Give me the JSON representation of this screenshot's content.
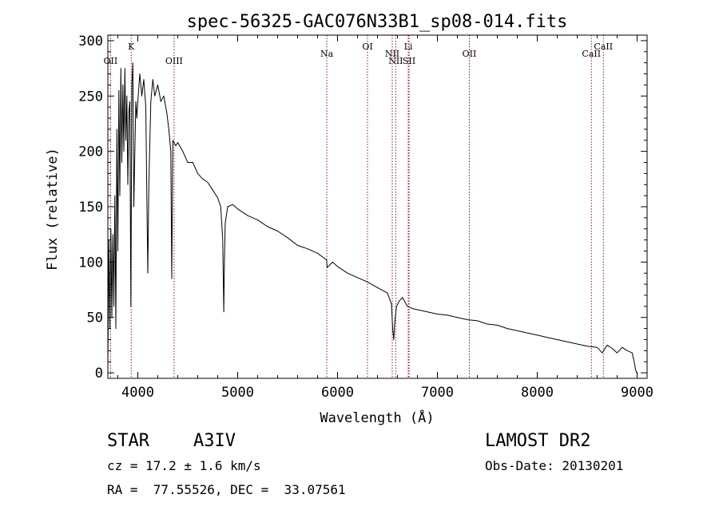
{
  "chart_data": {
    "type": "line",
    "title": "spec-56325-GAC076N33B1_sp08-014.fits",
    "xlabel": "Wavelength (Å)",
    "ylabel": "Flux (relative)",
    "xlim": [
      3700,
      9100
    ],
    "ylim": [
      -5,
      305
    ],
    "xticks": [
      4000,
      5000,
      6000,
      7000,
      8000,
      9000
    ],
    "yticks": [
      0,
      50,
      100,
      150,
      200,
      250,
      300
    ],
    "grid": false,
    "line_color": "#000000",
    "marker_color": "#8b1a1a",
    "spectrum": [
      [
        3700,
        5
      ],
      [
        3710,
        120
      ],
      [
        3720,
        40
      ],
      [
        3730,
        130
      ],
      [
        3740,
        50
      ],
      [
        3750,
        125
      ],
      [
        3760,
        60
      ],
      [
        3770,
        160
      ],
      [
        3780,
        40
      ],
      [
        3790,
        220
      ],
      [
        3800,
        110
      ],
      [
        3810,
        255
      ],
      [
        3820,
        160
      ],
      [
        3830,
        275
      ],
      [
        3840,
        190
      ],
      [
        3850,
        260
      ],
      [
        3860,
        200
      ],
      [
        3870,
        275
      ],
      [
        3880,
        210
      ],
      [
        3890,
        250
      ],
      [
        3900,
        170
      ],
      [
        3910,
        235
      ],
      [
        3920,
        245
      ],
      [
        3930,
        60
      ],
      [
        3940,
        260
      ],
      [
        3950,
        280
      ],
      [
        3960,
        150
      ],
      [
        3970,
        200
      ],
      [
        3980,
        245
      ],
      [
        3990,
        230
      ],
      [
        4000,
        245
      ],
      [
        4020,
        270
      ],
      [
        4040,
        250
      ],
      [
        4060,
        265
      ],
      [
        4080,
        240
      ],
      [
        4090,
        160
      ],
      [
        4100,
        90
      ],
      [
        4110,
        170
      ],
      [
        4130,
        245
      ],
      [
        4150,
        265
      ],
      [
        4170,
        250
      ],
      [
        4200,
        260
      ],
      [
        4230,
        245
      ],
      [
        4260,
        250
      ],
      [
        4290,
        235
      ],
      [
        4310,
        220
      ],
      [
        4330,
        200
      ],
      [
        4340,
        85
      ],
      [
        4350,
        210
      ],
      [
        4380,
        205
      ],
      [
        4400,
        208
      ],
      [
        4450,
        200
      ],
      [
        4500,
        190
      ],
      [
        4550,
        190
      ],
      [
        4600,
        180
      ],
      [
        4650,
        175
      ],
      [
        4700,
        172
      ],
      [
        4750,
        165
      ],
      [
        4800,
        158
      ],
      [
        4830,
        150
      ],
      [
        4850,
        120
      ],
      [
        4855,
        90
      ],
      [
        4861,
        55
      ],
      [
        4866,
        95
      ],
      [
        4875,
        135
      ],
      [
        4900,
        150
      ],
      [
        4950,
        152
      ],
      [
        5000,
        148
      ],
      [
        5100,
        142
      ],
      [
        5200,
        138
      ],
      [
        5300,
        132
      ],
      [
        5400,
        128
      ],
      [
        5500,
        122
      ],
      [
        5600,
        115
      ],
      [
        5700,
        112
      ],
      [
        5800,
        108
      ],
      [
        5890,
        102
      ],
      [
        5896,
        95
      ],
      [
        5950,
        100
      ],
      [
        6000,
        96
      ],
      [
        6100,
        90
      ],
      [
        6200,
        86
      ],
      [
        6300,
        82
      ],
      [
        6400,
        77
      ],
      [
        6500,
        72
      ],
      [
        6540,
        62
      ],
      [
        6552,
        40
      ],
      [
        6563,
        30
      ],
      [
        6572,
        45
      ],
      [
        6590,
        60
      ],
      [
        6620,
        65
      ],
      [
        6650,
        68
      ],
      [
        6700,
        60
      ],
      [
        6750,
        58
      ],
      [
        6800,
        57
      ],
      [
        6900,
        55
      ],
      [
        7000,
        53
      ],
      [
        7100,
        52
      ],
      [
        7200,
        50
      ],
      [
        7300,
        48
      ],
      [
        7400,
        47
      ],
      [
        7500,
        44
      ],
      [
        7600,
        43
      ],
      [
        7700,
        40
      ],
      [
        7800,
        38
      ],
      [
        7900,
        36
      ],
      [
        8000,
        34
      ],
      [
        8100,
        32
      ],
      [
        8200,
        30
      ],
      [
        8300,
        28
      ],
      [
        8400,
        26
      ],
      [
        8500,
        24
      ],
      [
        8600,
        23
      ],
      [
        8650,
        18
      ],
      [
        8700,
        25
      ],
      [
        8750,
        22
      ],
      [
        8800,
        18
      ],
      [
        8850,
        23
      ],
      [
        8900,
        20
      ],
      [
        8950,
        18
      ],
      [
        8970,
        10
      ],
      [
        8985,
        3
      ],
      [
        8995,
        0
      ]
    ],
    "lines": [
      {
        "label": "OII",
        "wavelength": 3727,
        "row": 2
      },
      {
        "label": "K",
        "wavelength": 3934,
        "row": 1
      },
      {
        "label": "OIII",
        "wavelength": 4363,
        "row": 2
      },
      {
        "label": "Na",
        "wavelength": 5893,
        "row": 1.5
      },
      {
        "label": "OI",
        "wavelength": 6300,
        "row": 1
      },
      {
        "label": "NII",
        "wavelength": 6548,
        "row": 1.5
      },
      {
        "label": "NII",
        "wavelength": 6583,
        "row": 2
      },
      {
        "label": "Li",
        "wavelength": 6708,
        "row": 1
      },
      {
        "label": "SII",
        "wavelength": 6717,
        "row": 2
      },
      {
        "label": "OII",
        "wavelength": 7320,
        "row": 1.5
      },
      {
        "label": "CaII",
        "wavelength": 8542,
        "row": 1.5
      },
      {
        "label": "CaII",
        "wavelength": 8662,
        "row": 1
      }
    ]
  },
  "info": {
    "object_class": "STAR",
    "subclass": "A3IV",
    "survey": "LAMOST DR2",
    "redshift": "cz = 17.2 ± 1.6 km/s",
    "obs_date": "Obs-Date: 20130201",
    "coords": "RA =  77.55526, DEC =  33.07561"
  }
}
